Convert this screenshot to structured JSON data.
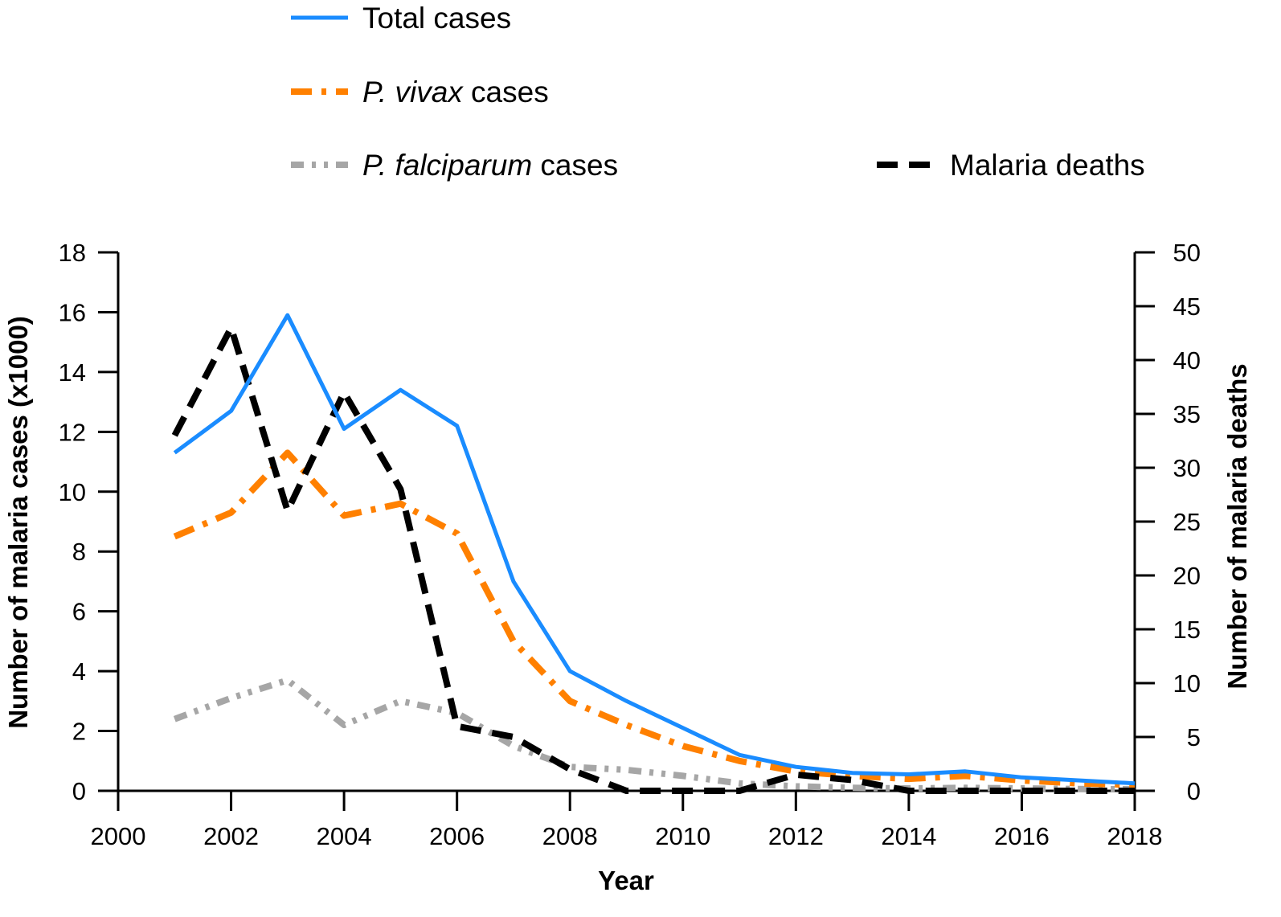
{
  "chart_data": {
    "type": "line",
    "title": "",
    "xlabel": "Year",
    "ylabel": "Number of malaria cases  (x1000)",
    "y2label": "Number of malaria deaths",
    "xlim": [
      2000,
      2018
    ],
    "ylim": [
      0,
      18
    ],
    "y2lim": [
      0,
      50
    ],
    "x_ticks": [
      2000,
      2002,
      2004,
      2006,
      2008,
      2010,
      2012,
      2014,
      2016,
      2018
    ],
    "y_ticks": [
      0,
      2,
      4,
      6,
      8,
      10,
      12,
      14,
      16,
      18
    ],
    "y2_ticks": [
      0,
      5,
      10,
      15,
      20,
      25,
      30,
      35,
      40,
      45,
      50
    ],
    "x": [
      2001,
      2002,
      2003,
      2004,
      2005,
      2006,
      2007,
      2008,
      2009,
      2010,
      2011,
      2012,
      2013,
      2014,
      2015,
      2016,
      2017,
      2018
    ],
    "legend_position": "top",
    "series": [
      {
        "name": "Total cases",
        "label_prefix": "",
        "label_italic": "",
        "label_suffix": "Total cases",
        "axis": "left",
        "color": "#1a8cff",
        "dash": "solid",
        "values": [
          11.3,
          12.7,
          15.9,
          12.1,
          13.4,
          12.2,
          7.0,
          4.0,
          3.0,
          2.1,
          1.2,
          0.8,
          0.6,
          0.55,
          0.65,
          0.45,
          0.35,
          0.25
        ]
      },
      {
        "name": "P. vivax cases",
        "label_prefix": "",
        "label_italic": "P. vivax",
        "label_suffix": " cases",
        "axis": "left",
        "color": "#ff8000",
        "dash": "dashdot",
        "values": [
          8.5,
          9.3,
          11.3,
          9.2,
          9.6,
          8.6,
          5.0,
          3.0,
          2.2,
          1.5,
          1.0,
          0.65,
          0.5,
          0.4,
          0.5,
          0.35,
          0.25,
          0.2
        ]
      },
      {
        "name": "P. falciparum cases",
        "label_prefix": "",
        "label_italic": "P. falciparum",
        "label_suffix": " cases",
        "axis": "left",
        "color": "#a6a6a6",
        "dash": "dashdotdot",
        "values": [
          2.4,
          3.1,
          3.7,
          2.2,
          3.0,
          2.6,
          1.5,
          0.8,
          0.7,
          0.5,
          0.25,
          0.15,
          0.1,
          0.08,
          0.1,
          0.08,
          0.06,
          0.05
        ]
      },
      {
        "name": "Malaria deaths",
        "label_prefix": "",
        "label_italic": "",
        "label_suffix": "Malaria deaths",
        "axis": "right",
        "color": "#000000",
        "dash": "dashed",
        "values": [
          33,
          43,
          26,
          37,
          28,
          6,
          5,
          2,
          0,
          0,
          0,
          1.5,
          1,
          0,
          0,
          0,
          0,
          0
        ]
      }
    ]
  }
}
